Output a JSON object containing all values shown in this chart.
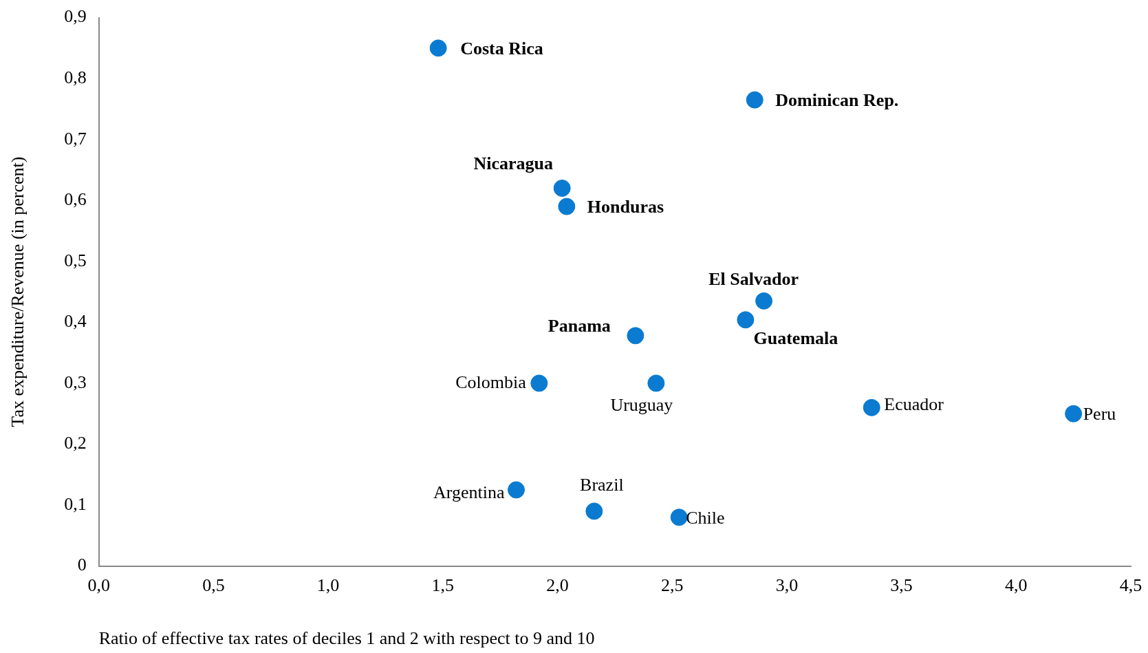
{
  "chart_data": {
    "type": "scatter",
    "xlabel": "Ratio of effective tax rates of deciles 1 and 2 with respect to 9 and 10",
    "ylabel": "Tax expenditure/Revenue (in percent)",
    "x": [
      1.48,
      2.86,
      2.02,
      2.04,
      2.9,
      2.82,
      2.34,
      1.92,
      2.43,
      3.37,
      4.25,
      1.82,
      2.16,
      2.53
    ],
    "values": [
      0.85,
      0.765,
      0.62,
      0.59,
      0.435,
      0.404,
      0.378,
      0.3,
      0.3,
      0.26,
      0.25,
      0.125,
      0.09,
      0.08
    ],
    "color": "#0a7bd0",
    "marker": "circle",
    "grid": false,
    "legend": false,
    "xlim": [
      0,
      4.5
    ],
    "xticks": [
      {
        "value": 0,
        "label": "0,0"
      },
      {
        "value": 0.5,
        "label": "0,5"
      },
      {
        "value": 1,
        "label": "1,0"
      },
      {
        "value": 1.5,
        "label": "1,5"
      },
      {
        "value": 2,
        "label": "2,0"
      },
      {
        "value": 2.5,
        "label": "2,5"
      },
      {
        "value": 3,
        "label": "3,0"
      },
      {
        "value": 3.5,
        "label": "3,5"
      },
      {
        "value": 4,
        "label": "4,0"
      },
      {
        "value": 4.5,
        "label": "4,5"
      }
    ],
    "ylim": [
      0,
      0.9
    ],
    "yticks": [
      0,
      {
        "value": 0.1,
        "label": "0,1"
      },
      {
        "value": 0.2,
        "label": "0,2"
      },
      {
        "value": 0.3,
        "label": "0,3"
      },
      {
        "value": 0.4,
        "label": "0,4"
      },
      {
        "value": 0.5,
        "label": "0,5"
      },
      {
        "value": 0.6,
        "label": "0,6"
      },
      {
        "value": 0.7,
        "label": "0,7"
      },
      {
        "value": 0.8,
        "label": "0,8"
      },
      {
        "value": 0.9,
        "label": "0,9"
      }
    ],
    "annotations": [
      {
        "text": "Costa Rica",
        "x": 1.48,
        "y": 0.85
      },
      {
        "text": "Dominican Rep.",
        "x": 2.86,
        "y": 0.765
      },
      {
        "text": "Nicaragua",
        "x": 2.02,
        "y": 0.62
      },
      {
        "text": "Honduras",
        "x": 2.04,
        "y": 0.59
      },
      {
        "text": "El Salvador",
        "x": 2.9,
        "y": 0.435
      },
      {
        "text": "Guatemala",
        "x": 2.82,
        "y": 0.404
      },
      {
        "text": "Panama",
        "x": 2.34,
        "y": 0.378
      },
      {
        "text": "Colombia",
        "x": 1.92,
        "y": 0.3
      },
      {
        "text": "Uruguay",
        "x": 2.43,
        "y": 0.3
      },
      {
        "text": "Ecuador",
        "x": 3.37,
        "y": 0.26
      },
      {
        "text": "Peru",
        "x": 4.25,
        "y": 0.25
      },
      {
        "text": "Argentina",
        "x": 1.82,
        "y": 0.125
      },
      {
        "text": "Brazil",
        "x": 2.16,
        "y": 0.09
      },
      {
        "text": "Chile",
        "x": 2.53,
        "y": 0.08
      }
    ]
  }
}
